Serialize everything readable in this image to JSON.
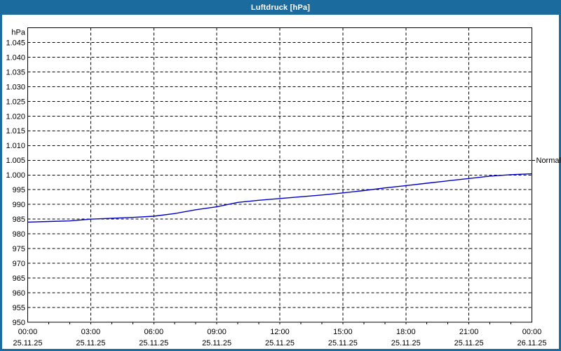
{
  "window": {
    "title": "Luftdruck [hPa]",
    "colors": {
      "titlebar": "#1C6B9E",
      "border": "#1C6B9E",
      "background": "#FFFFFF",
      "title_text": "#FFFFFF"
    }
  },
  "chart_data": {
    "type": "line",
    "title": "Luftdruck [hPa]",
    "unit_label": "hPa",
    "line_color": "#0000C8",
    "grid": "dashed-black-horizontal-and-vertical",
    "legend_position": "none",
    "ylim": [
      950,
      1050
    ],
    "ytick_step": 5,
    "ytick_values": [
      1045,
      1040,
      1035,
      1030,
      1025,
      1020,
      1015,
      1010,
      1005,
      1000,
      995,
      990,
      985,
      980,
      975,
      970,
      965,
      960,
      955,
      950
    ],
    "ytick_labels": [
      "1.045",
      "1.040",
      "1.035",
      "1.030",
      "1.025",
      "1.020",
      "1.015",
      "1.010",
      "1.005",
      "1.000",
      "995",
      "990",
      "985",
      "980",
      "975",
      "970",
      "965",
      "960",
      "955",
      "950"
    ],
    "xlim_hours": [
      0,
      24
    ],
    "xtick_hours": [
      0,
      3,
      6,
      9,
      12,
      15,
      18,
      21,
      24
    ],
    "xtick_times": [
      "00:00",
      "03:00",
      "06:00",
      "09:00",
      "12:00",
      "15:00",
      "18:00",
      "21:00",
      "00:00"
    ],
    "xtick_dates": [
      "25.11.25",
      "25.11.25",
      "25.11.25",
      "25.11.25",
      "25.11.25",
      "25.11.25",
      "25.11.25",
      "25.11.25",
      "26.11.25"
    ],
    "minor_xtick_every_hours": 1,
    "series": [
      {
        "name": "Luftdruck",
        "hours": [
          0,
          1,
          2,
          3,
          4,
          5,
          6,
          7,
          8,
          9,
          10,
          11,
          12,
          13,
          14,
          15,
          16,
          17,
          18,
          19,
          20,
          21,
          22,
          23,
          24
        ],
        "values": [
          984.0,
          984.2,
          984.4,
          985.0,
          985.3,
          985.6,
          986.0,
          986.9,
          988.2,
          989.2,
          990.7,
          991.4,
          992.0,
          992.6,
          993.2,
          993.9,
          994.7,
          995.6,
          996.4,
          997.2,
          998.0,
          998.8,
          999.6,
          1000.1,
          1000.4
        ]
      }
    ],
    "normal_marker": {
      "label": "Normal",
      "value": 1005
    }
  }
}
